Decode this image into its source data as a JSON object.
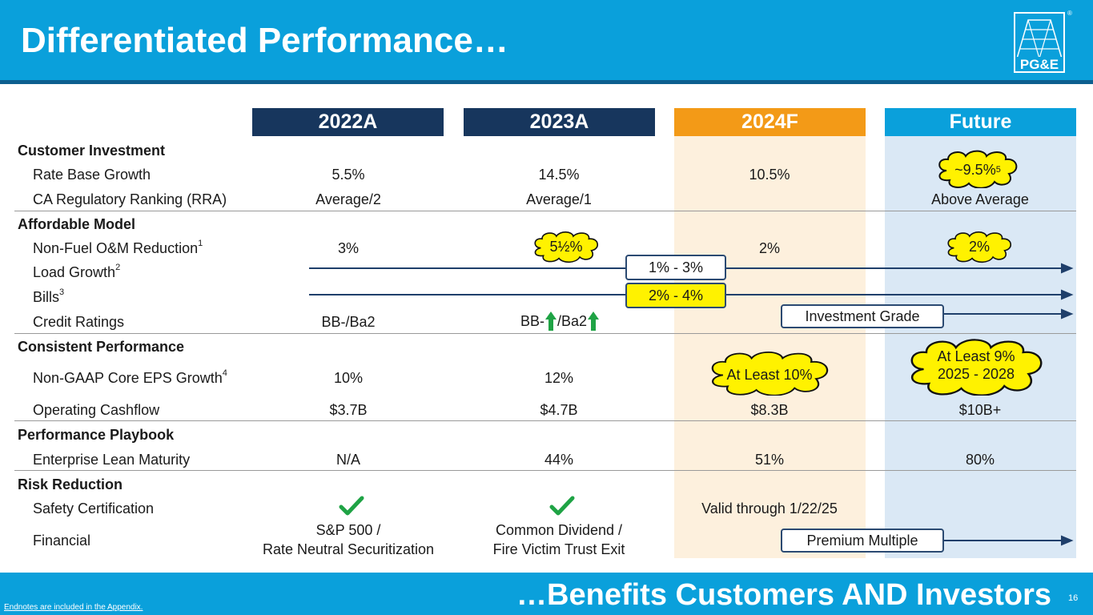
{
  "header": {
    "title": "Differentiated Performance…"
  },
  "footer": {
    "tagline": "…Benefits Customers AND Investors",
    "page_number": "16",
    "endnote": "Endnotes are included in the Appendix."
  },
  "logo": {
    "text": "PG&E",
    "reg": "®"
  },
  "columns": [
    {
      "label": "2022A",
      "color": "#17365d"
    },
    {
      "label": "2023A",
      "color": "#17365d"
    },
    {
      "label": "2024F",
      "color": "#f39a17"
    },
    {
      "label": "Future",
      "color": "#0aa0db"
    }
  ],
  "shading": {
    "forecast": "#fdf0dd",
    "future": "#dae8f5"
  },
  "sections": {
    "customer_investment": "Customer Investment",
    "affordable_model": "Affordable Model",
    "consistent_performance": "Consistent Performance",
    "performance_playbook": "Performance Playbook",
    "risk_reduction": "Risk Reduction"
  },
  "rows": {
    "rate_base": {
      "label": "Rate Base Growth",
      "y2022": "5.5%",
      "y2023": "14.5%",
      "y2024": "10.5%",
      "future": "~9.5%",
      "future_note": "5"
    },
    "rra": {
      "label": "CA Regulatory Ranking (RRA)",
      "y2022": "Average/2",
      "y2023": "Average/1",
      "future": "Above Average"
    },
    "om": {
      "label": "Non-Fuel O&M Reduction",
      "note": "1",
      "y2022": "3%",
      "y2023": "5½%",
      "y2024": "2%",
      "future": "2%"
    },
    "load": {
      "label": "Load Growth",
      "note": "2",
      "range": "1% - 3%"
    },
    "bills": {
      "label": "Bills",
      "note": "3",
      "range": "2% - 4%"
    },
    "credit": {
      "label": "Credit Ratings",
      "y2022": "BB-/Ba2",
      "y2023_a": "BB-",
      "y2023_b": "/Ba2",
      "forward": "Investment Grade"
    },
    "eps": {
      "label": "Non-GAAP Core EPS Growth",
      "note": "4",
      "y2022": "10%",
      "y2023": "12%",
      "y2024": "At Least 10%",
      "future_line1": "At Least 9%",
      "future_line2": "2025 - 2028"
    },
    "cashflow": {
      "label": "Operating Cashflow",
      "y2022": "$3.7B",
      "y2023": "$4.7B",
      "y2024": "$8.3B",
      "future": "$10B+"
    },
    "lean": {
      "label": "Enterprise Lean Maturity",
      "y2022": "N/A",
      "y2023": "44%",
      "y2024": "51%",
      "future": "80%"
    },
    "safety": {
      "label": "Safety Certification",
      "y2024": "Valid through 1/22/25"
    },
    "financial": {
      "label": "Financial",
      "y2022_line1": "S&P 500 /",
      "y2022_line2": "Rate Neutral Securitization",
      "y2023_line1": "Common Dividend /",
      "y2023_line2": "Fire Victim Trust Exit",
      "forward": "Premium Multiple"
    }
  }
}
